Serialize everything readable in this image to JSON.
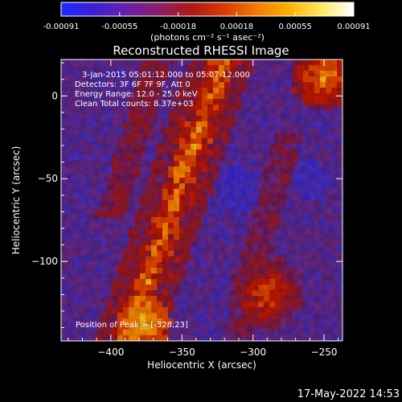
{
  "colorbar": {
    "ticks": [
      "-0.00091",
      "-0.00055",
      "-0.00018",
      "0.00018",
      "0.00055",
      "0.00091"
    ],
    "units": "(photons cm⁻² s⁻¹ asec⁻²)",
    "colors": [
      "#1a2bff",
      "#3b1fd8",
      "#6a1fa8",
      "#8a1f6a",
      "#b01818",
      "#d83a00",
      "#f07a00",
      "#ffb000",
      "#ffe860",
      "#ffffff"
    ]
  },
  "chart_data": {
    "type": "heatmap",
    "title": "Reconstructed RHESSI Image",
    "xlabel": "Heliocentric X (arcsec)",
    "ylabel": "Heliocentric Y (arcsec)",
    "xlim": [
      -435,
      -237
    ],
    "ylim": [
      -148,
      22
    ],
    "xticks": [
      -400,
      -350,
      -300,
      -250
    ],
    "yticks": [
      0,
      -50,
      -100
    ],
    "annotations": {
      "time": "3-Jan-2015 05:01:12.000 to 05:07:12.000",
      "detectors": "Detectors: 3F 6F 7F 9F, Att 0",
      "energy": "Energy Range: 12.0 - 25.0 keV",
      "clean": "Clean     Total counts: 8.37e+03",
      "peak": "Position of Peak = [-328,23]"
    },
    "peak_position": [
      -328,
      23
    ],
    "colorbar_range": [
      -0.00091,
      0.00091
    ]
  },
  "footer": {
    "timestamp": "17-May-2022 14:53"
  }
}
